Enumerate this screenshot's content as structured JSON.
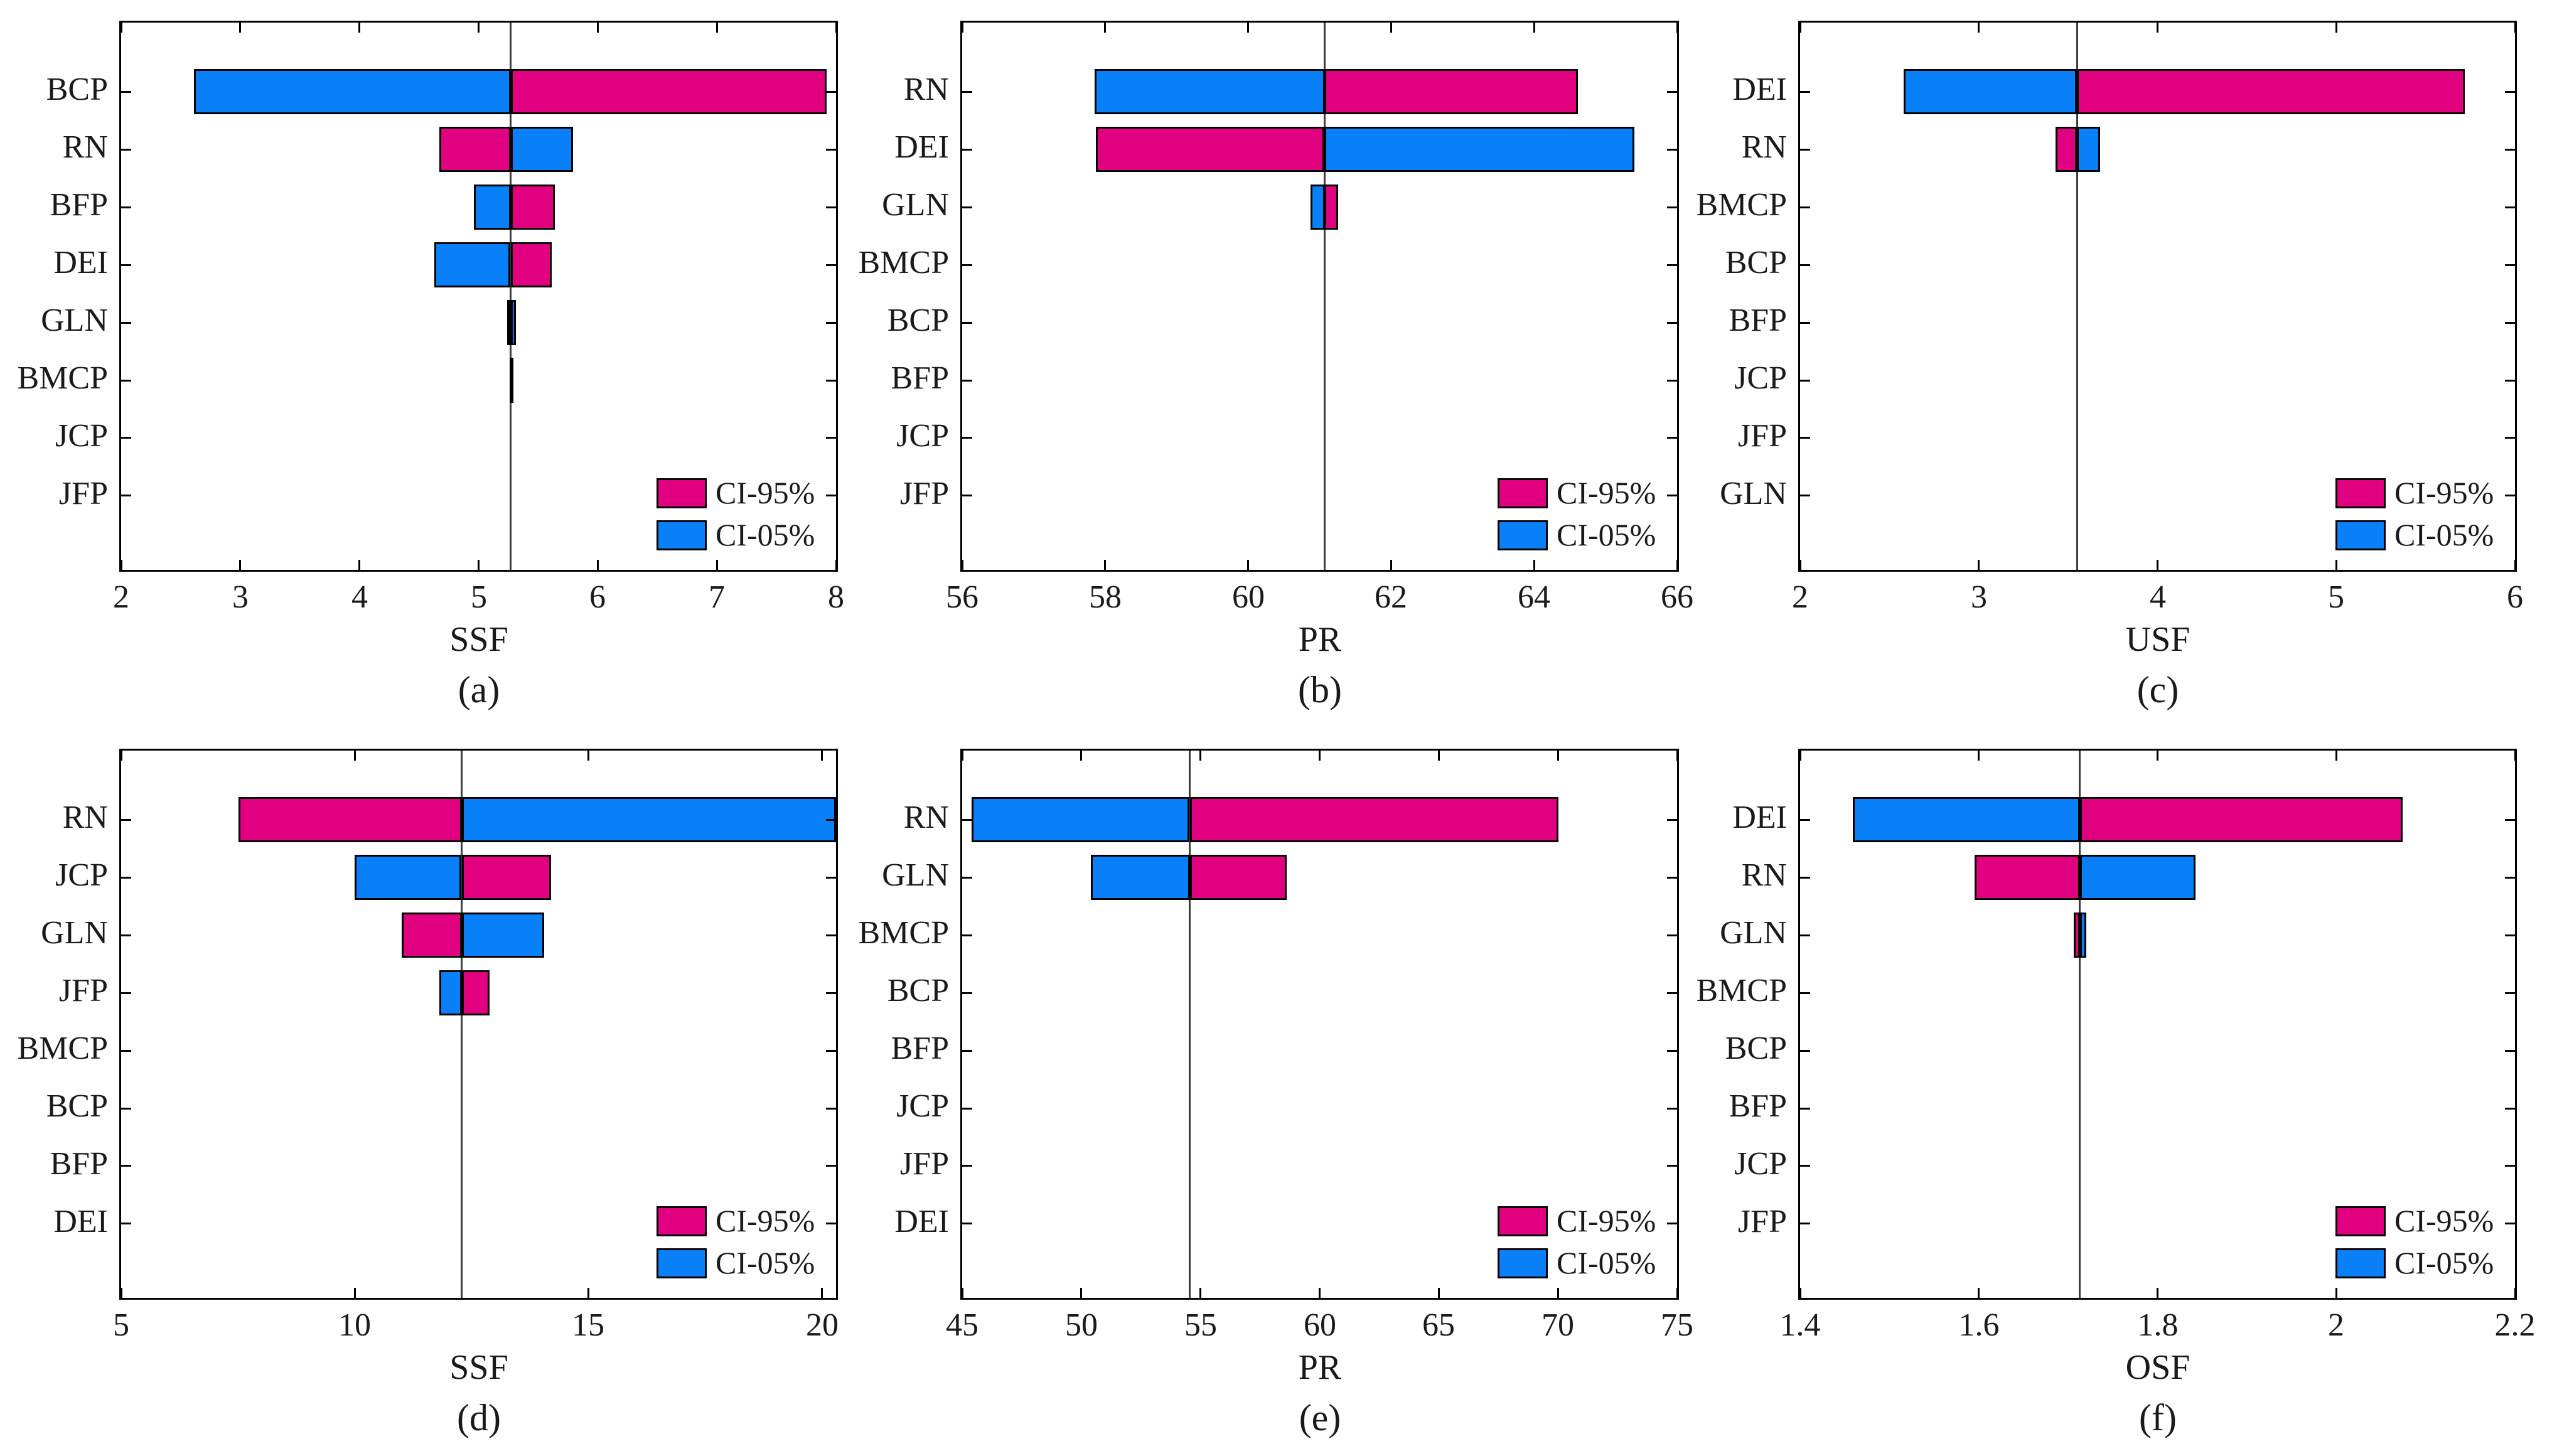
{
  "colors": {
    "ci95": "#E1007F",
    "ci05": "#0A80F8",
    "zero": "#000000",
    "baseline_line": "#3C3C3C",
    "axis": "#000000",
    "text": "#1A1A1A"
  },
  "legend": {
    "entries": [
      {
        "label": "CI-95%",
        "color_key": "ci95"
      },
      {
        "label": "CI-05%",
        "color_key": "ci05"
      }
    ]
  },
  "chart_data": [
    {
      "panel": "(a)",
      "type": "bar",
      "orientation": "horizontal",
      "xlabel": "SSF",
      "xlim": [
        2,
        8
      ],
      "xticks": [
        "2",
        "3",
        "4",
        "5",
        "6",
        "7",
        "8"
      ],
      "xtick_values": [
        2,
        3,
        4,
        5,
        6,
        7,
        8
      ],
      "baseline": 5.27,
      "grid": false,
      "legend_position": "bottom-right",
      "categories": [
        "BCP",
        "RN",
        "BFP",
        "DEI",
        "GLN",
        "BMCP",
        "JCP",
        "JFP"
      ],
      "rows": [
        {
          "label": "BCP",
          "segments": [
            {
              "series": "CI-05%",
              "x0": 2.61,
              "x1": 5.27
            },
            {
              "series": "CI-95%",
              "x0": 5.27,
              "x1": 7.92
            }
          ]
        },
        {
          "label": "RN",
          "segments": [
            {
              "series": "CI-95%",
              "x0": 4.67,
              "x1": 5.27
            },
            {
              "series": "CI-05%",
              "x0": 5.27,
              "x1": 5.79
            }
          ]
        },
        {
          "label": "BFP",
          "segments": [
            {
              "series": "CI-05%",
              "x0": 4.96,
              "x1": 5.27
            },
            {
              "series": "CI-95%",
              "x0": 5.27,
              "x1": 5.64
            }
          ]
        },
        {
          "label": "DEI",
          "segments": [
            {
              "series": "CI-05%",
              "x0": 4.63,
              "x1": 5.27
            },
            {
              "series": "CI-95%",
              "x0": 5.27,
              "x1": 5.61
            }
          ]
        },
        {
          "label": "GLN",
          "segments": [
            {
              "series": "CI-95%",
              "x0": 5.24,
              "x1": 5.27
            },
            {
              "series": "CI-05%",
              "x0": 5.27,
              "x1": 5.31
            }
          ]
        },
        {
          "label": "BMCP",
          "segments": [
            {
              "series": "zero",
              "x0": 5.26,
              "x1": 5.29
            }
          ]
        },
        {
          "label": "JCP",
          "segments": []
        },
        {
          "label": "JFP",
          "segments": []
        }
      ]
    },
    {
      "panel": "(b)",
      "type": "bar",
      "orientation": "horizontal",
      "xlabel": "PR",
      "xlim": [
        56,
        66
      ],
      "xticks": [
        "56",
        "58",
        "60",
        "62",
        "64",
        "66"
      ],
      "xtick_values": [
        56,
        58,
        60,
        62,
        64,
        66
      ],
      "baseline": 61.07,
      "grid": false,
      "legend_position": "bottom-right",
      "categories": [
        "RN",
        "DEI",
        "GLN",
        "BMCP",
        "BCP",
        "BFP",
        "JCP",
        "JFP"
      ],
      "rows": [
        {
          "label": "RN",
          "segments": [
            {
              "series": "CI-05%",
              "x0": 57.85,
              "x1": 61.07
            },
            {
              "series": "CI-95%",
              "x0": 61.07,
              "x1": 64.62
            }
          ]
        },
        {
          "label": "DEI",
          "segments": [
            {
              "series": "CI-95%",
              "x0": 57.87,
              "x1": 61.07
            },
            {
              "series": "CI-05%",
              "x0": 61.07,
              "x1": 65.41
            }
          ]
        },
        {
          "label": "GLN",
          "segments": [
            {
              "series": "CI-05%",
              "x0": 60.87,
              "x1": 61.07
            },
            {
              "series": "CI-95%",
              "x0": 61.07,
              "x1": 61.26
            }
          ]
        },
        {
          "label": "BMCP",
          "segments": []
        },
        {
          "label": "BCP",
          "segments": []
        },
        {
          "label": "BFP",
          "segments": []
        },
        {
          "label": "JCP",
          "segments": []
        },
        {
          "label": "JFP",
          "segments": []
        }
      ]
    },
    {
      "panel": "(c)",
      "type": "bar",
      "orientation": "horizontal",
      "xlabel": "USF",
      "xlim": [
        2,
        6
      ],
      "xticks": [
        "2",
        "3",
        "4",
        "5",
        "6"
      ],
      "xtick_values": [
        2,
        3,
        4,
        5,
        6
      ],
      "baseline": 3.55,
      "grid": false,
      "legend_position": "bottom-right",
      "categories": [
        "DEI",
        "RN",
        "BMCP",
        "BCP",
        "BFP",
        "JCP",
        "JFP",
        "GLN"
      ],
      "rows": [
        {
          "label": "DEI",
          "segments": [
            {
              "series": "CI-05%",
              "x0": 2.58,
              "x1": 3.55
            },
            {
              "series": "CI-95%",
              "x0": 3.55,
              "x1": 5.72
            }
          ]
        },
        {
          "label": "RN",
          "segments": [
            {
              "series": "CI-95%",
              "x0": 3.43,
              "x1": 3.55
            },
            {
              "series": "CI-05%",
              "x0": 3.55,
              "x1": 3.68
            }
          ]
        },
        {
          "label": "BMCP",
          "segments": []
        },
        {
          "label": "BCP",
          "segments": []
        },
        {
          "label": "BFP",
          "segments": []
        },
        {
          "label": "JCP",
          "segments": []
        },
        {
          "label": "JFP",
          "segments": []
        },
        {
          "label": "GLN",
          "segments": []
        }
      ]
    },
    {
      "panel": "(d)",
      "type": "bar",
      "orientation": "horizontal",
      "xlabel": "SSF",
      "xlim": [
        5,
        20.3
      ],
      "xticks": [
        "5",
        "10",
        "15",
        "20"
      ],
      "xtick_values": [
        5,
        10,
        15,
        20
      ],
      "baseline": 12.29,
      "grid": false,
      "legend_position": "bottom-right",
      "categories": [
        "RN",
        "JCP",
        "GLN",
        "JFP",
        "BMCP",
        "BCP",
        "BFP",
        "DEI"
      ],
      "rows": [
        {
          "label": "RN",
          "segments": [
            {
              "series": "CI-95%",
              "x0": 7.51,
              "x1": 12.29
            },
            {
              "series": "CI-05%",
              "x0": 12.29,
              "x1": 20.3
            }
          ]
        },
        {
          "label": "JCP",
          "segments": [
            {
              "series": "CI-05%",
              "x0": 10.0,
              "x1": 12.29
            },
            {
              "series": "CI-95%",
              "x0": 12.29,
              "x1": 14.2
            }
          ]
        },
        {
          "label": "GLN",
          "segments": [
            {
              "series": "CI-95%",
              "x0": 11.0,
              "x1": 12.29
            },
            {
              "series": "CI-05%",
              "x0": 12.29,
              "x1": 14.05
            }
          ]
        },
        {
          "label": "JFP",
          "segments": [
            {
              "series": "CI-05%",
              "x0": 11.81,
              "x1": 12.29
            },
            {
              "series": "CI-95%",
              "x0": 12.29,
              "x1": 12.88
            }
          ]
        },
        {
          "label": "BMCP",
          "segments": []
        },
        {
          "label": "BCP",
          "segments": []
        },
        {
          "label": "BFP",
          "segments": []
        },
        {
          "label": "DEI",
          "segments": []
        }
      ]
    },
    {
      "panel": "(e)",
      "type": "bar",
      "orientation": "horizontal",
      "xlabel": "PR",
      "xlim": [
        45,
        75
      ],
      "xticks": [
        "45",
        "50",
        "55",
        "60",
        "65",
        "70",
        "75"
      ],
      "xtick_values": [
        45,
        50,
        55,
        60,
        65,
        70,
        75
      ],
      "baseline": 54.55,
      "grid": false,
      "legend_position": "bottom-right",
      "categories": [
        "RN",
        "GLN",
        "BMCP",
        "BCP",
        "BFP",
        "JCP",
        "JFP",
        "DEI"
      ],
      "rows": [
        {
          "label": "RN",
          "segments": [
            {
              "series": "CI-05%",
              "x0": 45.4,
              "x1": 54.55
            },
            {
              "series": "CI-95%",
              "x0": 54.55,
              "x1": 70.0
            }
          ]
        },
        {
          "label": "GLN",
          "segments": [
            {
              "series": "CI-05%",
              "x0": 50.4,
              "x1": 54.55
            },
            {
              "series": "CI-95%",
              "x0": 54.55,
              "x1": 58.6
            }
          ]
        },
        {
          "label": "BMCP",
          "segments": []
        },
        {
          "label": "BCP",
          "segments": []
        },
        {
          "label": "BFP",
          "segments": []
        },
        {
          "label": "JCP",
          "segments": []
        },
        {
          "label": "JFP",
          "segments": []
        },
        {
          "label": "DEI",
          "segments": []
        }
      ]
    },
    {
      "panel": "(f)",
      "type": "bar",
      "orientation": "horizontal",
      "xlabel": "OSF",
      "xlim": [
        1.4,
        2.2
      ],
      "xticks": [
        "1.4",
        "1.6",
        "1.8",
        "2",
        "2.2"
      ],
      "xtick_values": [
        1.4,
        1.6,
        1.8,
        2,
        2.2
      ],
      "baseline": 1.713,
      "grid": false,
      "legend_position": "bottom-right",
      "categories": [
        "DEI",
        "RN",
        "GLN",
        "BMCP",
        "BCP",
        "BFP",
        "JCP",
        "JFP"
      ],
      "rows": [
        {
          "label": "DEI",
          "segments": [
            {
              "series": "CI-05%",
              "x0": 1.459,
              "x1": 1.713
            },
            {
              "series": "CI-95%",
              "x0": 1.713,
              "x1": 2.074
            }
          ]
        },
        {
          "label": "RN",
          "segments": [
            {
              "series": "CI-95%",
              "x0": 1.595,
              "x1": 1.713
            },
            {
              "series": "CI-05%",
              "x0": 1.713,
              "x1": 1.842
            }
          ]
        },
        {
          "label": "GLN",
          "segments": [
            {
              "series": "CI-95%",
              "x0": 1.706,
              "x1": 1.713
            },
            {
              "series": "CI-05%",
              "x0": 1.713,
              "x1": 1.72
            }
          ]
        },
        {
          "label": "BMCP",
          "segments": []
        },
        {
          "label": "BCP",
          "segments": []
        },
        {
          "label": "BFP",
          "segments": []
        },
        {
          "label": "JCP",
          "segments": []
        },
        {
          "label": "JFP",
          "segments": []
        }
      ]
    }
  ]
}
